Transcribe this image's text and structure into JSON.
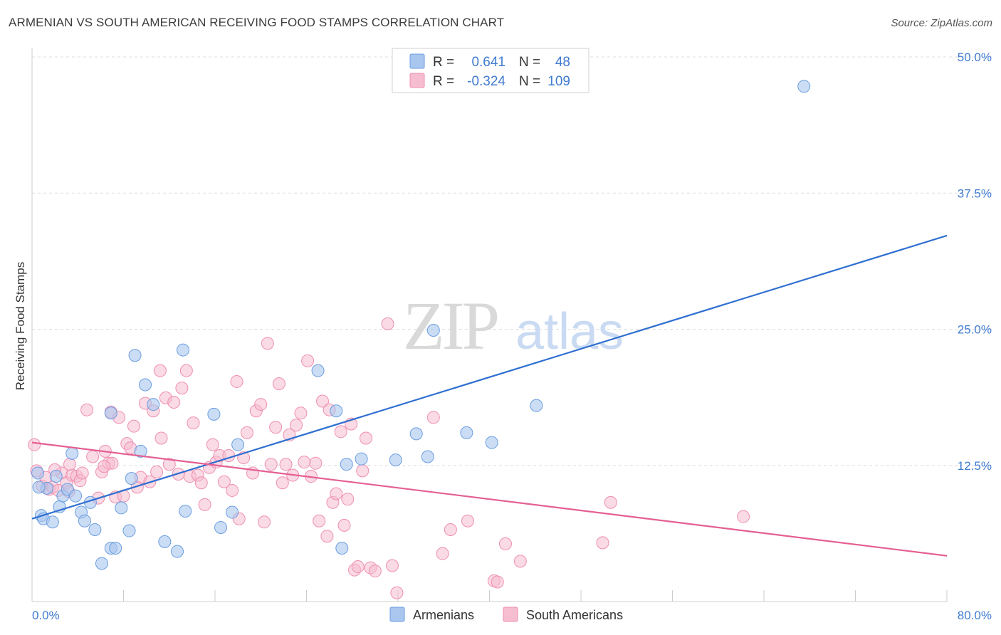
{
  "title": "ARMENIAN VS SOUTH AMERICAN RECEIVING FOOD STAMPS CORRELATION CHART",
  "source": "Source: ZipAtlas.com",
  "watermark": {
    "zip": "ZIP",
    "atlas": "atlas"
  },
  "colors": {
    "armenians_fill": "#a9c6ef",
    "armenians_stroke": "#6b9ee0",
    "armenians_line": "#2f6fd0",
    "south_fill": "#f6bcd0",
    "south_stroke": "#ee8fb0",
    "south_line": "#e45f92",
    "tick_text": "#3f7bd0",
    "grid": "#dddddd"
  },
  "legend": {
    "rows": [
      {
        "r_label": "R =",
        "r_value": "0.641",
        "n_label": "N =",
        "n_value": "48"
      },
      {
        "r_label": "R =",
        "r_value": "-0.324",
        "n_label": "N =",
        "n_value": "109"
      }
    ]
  },
  "chart_data": {
    "type": "scatter",
    "title": "ARMENIAN VS SOUTH AMERICAN RECEIVING FOOD STAMPS CORRELATION CHART",
    "xlabel": "",
    "ylabel": "Receiving Food Stamps",
    "xlim": [
      0,
      80
    ],
    "ylim": [
      0,
      50
    ],
    "x_tick_labels": [
      "0.0%",
      "80.0%"
    ],
    "y_ticks": [
      12.5,
      25.0,
      37.5,
      50.0
    ],
    "y_tick_labels": [
      "12.5%",
      "25.0%",
      "37.5%",
      "50.0%"
    ],
    "grid": true,
    "legend_position": "top-center",
    "series": [
      {
        "name": "Armenians",
        "r": 0.641,
        "n": 48,
        "trend": {
          "x": [
            0,
            80
          ],
          "y": [
            7.6,
            33.6
          ]
        },
        "points": [
          [
            0.5,
            11.8
          ],
          [
            0.8,
            7.9
          ],
          [
            1.0,
            7.6
          ],
          [
            1.3,
            10.4
          ],
          [
            1.8,
            7.3
          ],
          [
            2.1,
            11.5
          ],
          [
            2.4,
            8.7
          ],
          [
            2.7,
            9.7
          ],
          [
            3.1,
            10.3
          ],
          [
            3.5,
            13.6
          ],
          [
            3.8,
            9.7
          ],
          [
            4.3,
            8.2
          ],
          [
            4.6,
            7.4
          ],
          [
            5.1,
            9.1
          ],
          [
            5.5,
            6.6
          ],
          [
            6.1,
            3.5
          ],
          [
            6.9,
            17.3
          ],
          [
            6.9,
            4.9
          ],
          [
            7.3,
            4.9
          ],
          [
            7.8,
            8.6
          ],
          [
            8.5,
            6.5
          ],
          [
            8.7,
            11.3
          ],
          [
            9.5,
            13.8
          ],
          [
            9.0,
            22.6
          ],
          [
            9.9,
            19.9
          ],
          [
            10.6,
            18.1
          ],
          [
            11.6,
            5.5
          ],
          [
            12.7,
            4.6
          ],
          [
            13.2,
            23.1
          ],
          [
            13.4,
            8.3
          ],
          [
            15.9,
            17.2
          ],
          [
            16.5,
            6.8
          ],
          [
            17.5,
            8.2
          ],
          [
            18.0,
            14.4
          ],
          [
            25.0,
            21.2
          ],
          [
            26.6,
            17.5
          ],
          [
            27.1,
            4.9
          ],
          [
            27.5,
            12.6
          ],
          [
            28.8,
            13.1
          ],
          [
            31.8,
            13.0
          ],
          [
            33.6,
            15.4
          ],
          [
            34.6,
            13.3
          ],
          [
            35.1,
            24.9
          ],
          [
            38.0,
            15.5
          ],
          [
            40.2,
            14.6
          ],
          [
            44.1,
            18.0
          ],
          [
            67.5,
            47.3
          ],
          [
            0.6,
            10.5
          ]
        ]
      },
      {
        "name": "South Americans",
        "r": -0.324,
        "n": 109,
        "trend": {
          "x": [
            0,
            80
          ],
          "y": [
            14.6,
            4.2
          ]
        },
        "points": [
          [
            0.2,
            14.4
          ],
          [
            0.4,
            12.0
          ],
          [
            0.9,
            10.6
          ],
          [
            1.2,
            11.4
          ],
          [
            1.5,
            10.3
          ],
          [
            1.8,
            10.5
          ],
          [
            2.3,
            10.2
          ],
          [
            2.6,
            11.8
          ],
          [
            3.0,
            10.9
          ],
          [
            3.2,
            10.1
          ],
          [
            3.5,
            11.6
          ],
          [
            3.9,
            11.5
          ],
          [
            4.2,
            11.1
          ],
          [
            4.4,
            11.8
          ],
          [
            4.8,
            17.6
          ],
          [
            5.3,
            13.3
          ],
          [
            5.8,
            9.5
          ],
          [
            6.1,
            11.9
          ],
          [
            6.4,
            13.8
          ],
          [
            6.7,
            12.7
          ],
          [
            6.9,
            17.4
          ],
          [
            7.3,
            9.6
          ],
          [
            7.6,
            16.9
          ],
          [
            8.0,
            9.7
          ],
          [
            8.3,
            14.5
          ],
          [
            8.6,
            14.1
          ],
          [
            8.9,
            16.1
          ],
          [
            9.2,
            10.5
          ],
          [
            9.5,
            11.4
          ],
          [
            9.9,
            18.2
          ],
          [
            10.3,
            11.0
          ],
          [
            10.6,
            17.5
          ],
          [
            10.9,
            11.9
          ],
          [
            11.3,
            15.0
          ],
          [
            11.7,
            18.7
          ],
          [
            12.0,
            12.6
          ],
          [
            12.4,
            18.3
          ],
          [
            12.8,
            11.7
          ],
          [
            13.1,
            19.6
          ],
          [
            13.5,
            21.2
          ],
          [
            13.8,
            11.5
          ],
          [
            14.1,
            16.4
          ],
          [
            14.5,
            11.6
          ],
          [
            14.8,
            10.9
          ],
          [
            15.1,
            8.9
          ],
          [
            15.5,
            12.3
          ],
          [
            15.8,
            14.4
          ],
          [
            16.1,
            12.8
          ],
          [
            16.4,
            13.4
          ],
          [
            16.8,
            11.0
          ],
          [
            17.2,
            13.4
          ],
          [
            17.5,
            10.2
          ],
          [
            17.9,
            20.2
          ],
          [
            18.1,
            7.6
          ],
          [
            18.5,
            13.2
          ],
          [
            18.8,
            15.5
          ],
          [
            19.3,
            11.8
          ],
          [
            19.6,
            17.5
          ],
          [
            20.0,
            18.1
          ],
          [
            20.3,
            7.3
          ],
          [
            20.6,
            23.7
          ],
          [
            20.9,
            12.6
          ],
          [
            21.3,
            16.0
          ],
          [
            21.6,
            20.0
          ],
          [
            21.9,
            10.9
          ],
          [
            22.2,
            12.6
          ],
          [
            22.5,
            15.3
          ],
          [
            22.8,
            11.6
          ],
          [
            23.1,
            16.2
          ],
          [
            23.5,
            17.3
          ],
          [
            23.8,
            12.8
          ],
          [
            24.1,
            22.1
          ],
          [
            24.4,
            11.5
          ],
          [
            24.8,
            12.7
          ],
          [
            25.1,
            7.4
          ],
          [
            25.4,
            18.4
          ],
          [
            25.8,
            6.0
          ],
          [
            26.0,
            17.6
          ],
          [
            26.3,
            9.1
          ],
          [
            26.6,
            9.9
          ],
          [
            27.0,
            15.6
          ],
          [
            27.3,
            7.0
          ],
          [
            27.6,
            9.4
          ],
          [
            27.9,
            16.3
          ],
          [
            28.2,
            2.9
          ],
          [
            28.5,
            3.2
          ],
          [
            28.9,
            12.0
          ],
          [
            29.2,
            15.0
          ],
          [
            29.6,
            3.1
          ],
          [
            30.0,
            2.8
          ],
          [
            31.1,
            25.5
          ],
          [
            31.5,
            3.3
          ],
          [
            31.9,
            0.8
          ],
          [
            35.1,
            16.9
          ],
          [
            35.9,
            4.4
          ],
          [
            36.6,
            6.6
          ],
          [
            38.1,
            7.4
          ],
          [
            40.4,
            1.9
          ],
          [
            40.7,
            1.8
          ],
          [
            41.4,
            5.3
          ],
          [
            42.7,
            3.7
          ],
          [
            49.9,
            5.4
          ],
          [
            50.6,
            9.1
          ],
          [
            62.2,
            7.8
          ],
          [
            11.2,
            21.2
          ],
          [
            7.0,
            12.7
          ],
          [
            6.3,
            12.4
          ],
          [
            3.3,
            12.6
          ],
          [
            2.0,
            12.1
          ]
        ]
      }
    ]
  }
}
